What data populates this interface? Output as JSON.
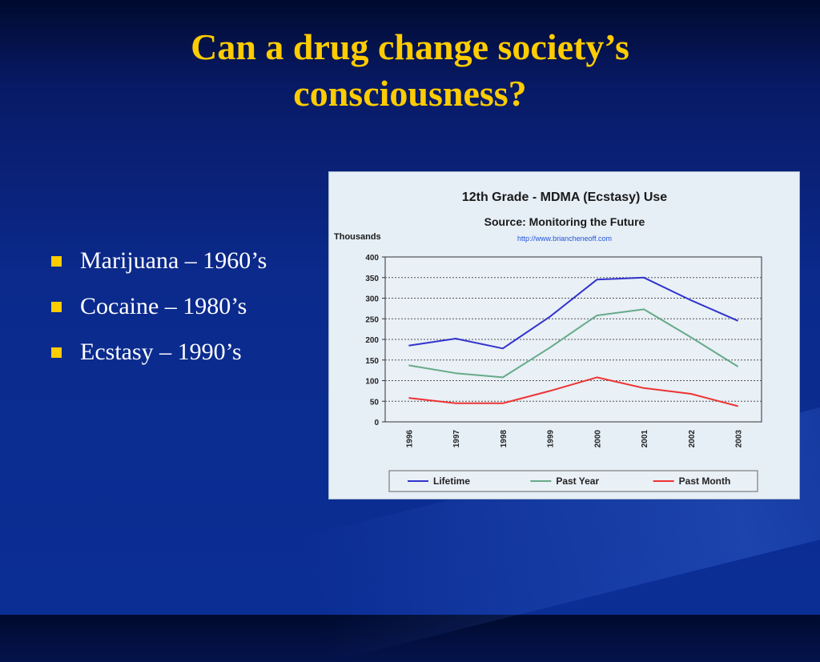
{
  "slide": {
    "title_line1": "Can a drug change society’s",
    "title_line2": "consciousness?",
    "bullets": [
      "Marijuana – 1960’s",
      "Cocaine – 1980’s",
      "Ecstasy – 1990’s"
    ],
    "colors": {
      "title": "#ffcc00",
      "bullet_text": "#ffffff",
      "bullet_marker": "#ffcc00"
    }
  },
  "chart_data": {
    "type": "line",
    "title": "12th Grade - MDMA (Ecstasy) Use",
    "subtitle": "Source: Monitoring the Future",
    "source_url": "http://www.briancheneoff.com",
    "ylabel": "Thousands",
    "xlabel": "",
    "categories": [
      "1996",
      "1997",
      "1998",
      "1999",
      "2000",
      "2001",
      "2002",
      "2003"
    ],
    "ylim": [
      0,
      400
    ],
    "yticks": [
      0,
      50,
      100,
      150,
      200,
      250,
      300,
      350,
      400
    ],
    "grid": true,
    "legend_position": "bottom",
    "series": [
      {
        "name": "Lifetime",
        "color": "#3333cc",
        "values": [
          185,
          202,
          178,
          255,
          345,
          350,
          295,
          245
        ]
      },
      {
        "name": "Past Year",
        "color": "#66aa88",
        "values": [
          137,
          118,
          108,
          180,
          258,
          273,
          205,
          134
        ]
      },
      {
        "name": "Past Month",
        "color": "#ee3333",
        "values": [
          58,
          45,
          45,
          75,
          108,
          82,
          68,
          38
        ]
      }
    ]
  }
}
